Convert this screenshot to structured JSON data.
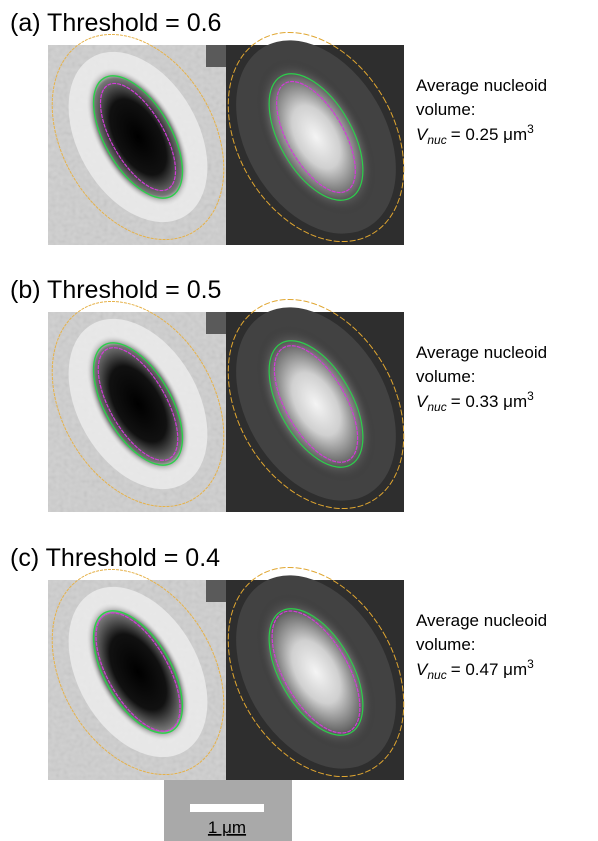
{
  "panels": [
    {
      "title": "(a) Threshold = 0.6",
      "line1": "Average nucleoid",
      "line2": "volume:",
      "symbol": "V",
      "subscript": "nuc",
      "equation": "= 0.25 μm",
      "superscript": "3"
    },
    {
      "title": "(b) Threshold = 0.5",
      "line1": "Average nucleoid",
      "line2": "volume:",
      "symbol": "V",
      "subscript": "nuc",
      "equation": "= 0.33 μm",
      "superscript": "3"
    },
    {
      "title": "(c) Threshold = 0.4",
      "line1": "Average nucleoid",
      "line2": "volume:",
      "symbol": "V",
      "subscript": "nuc",
      "equation": "= 0.47 μm",
      "superscript": "3"
    }
  ],
  "scale_bar": {
    "label": "1 μm"
  }
}
